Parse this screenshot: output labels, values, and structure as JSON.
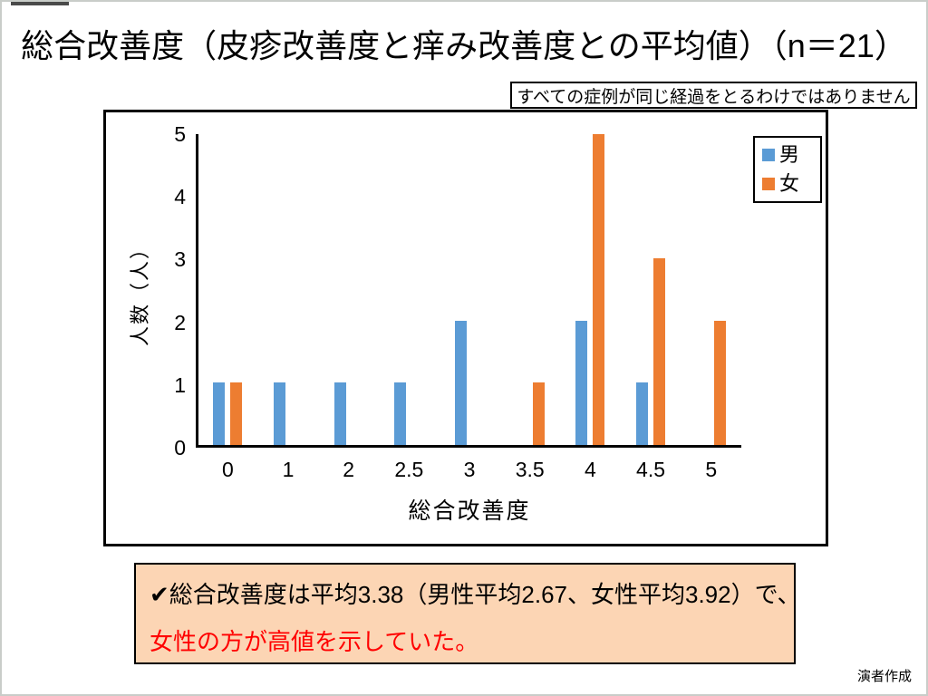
{
  "slide": {
    "title": "総合改善度（皮疹改善度と痒み改善度との平均値）（n＝21）",
    "caption_note": "すべての症例が同じ経過をとるわけではありません",
    "credit": "演者作成"
  },
  "chart_data": {
    "type": "bar",
    "title": "",
    "categories": [
      "0",
      "1",
      "2",
      "2.5",
      "3",
      "3.5",
      "4",
      "4.5",
      "5"
    ],
    "series": [
      {
        "name": "男",
        "color": "#5B9BD5",
        "values": [
          1,
          1,
          1,
          1,
          2,
          0,
          2,
          1,
          0
        ]
      },
      {
        "name": "女",
        "color": "#ED7D31",
        "values": [
          1,
          0,
          0,
          0,
          0,
          1,
          5,
          3,
          2
        ]
      }
    ],
    "xlabel": "総合改善度",
    "ylabel": "人数（人）",
    "ylim": [
      0,
      5
    ],
    "yticks": [
      0,
      1,
      2,
      3,
      4,
      5
    ],
    "grid": false,
    "legend_position": "top-right"
  },
  "summary_box": {
    "line1": "✔総合改善度は平均3.38（男性平均2.67、女性平均3.92）で、",
    "line2": "女性の方が高値を示していた。",
    "line1_color": "#000000",
    "line2_color": "#FF0000",
    "background": "#FCD5B4"
  }
}
